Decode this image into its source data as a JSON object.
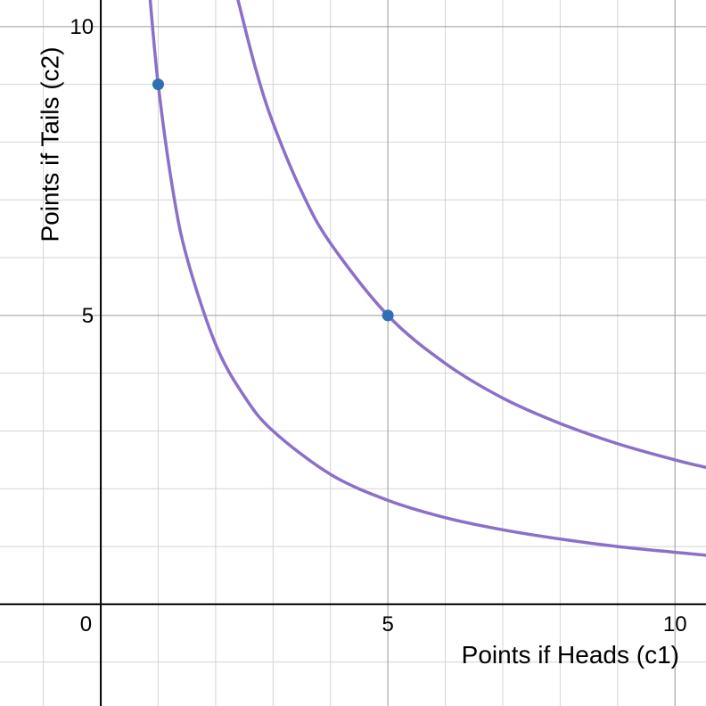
{
  "chart_data": {
    "type": "line",
    "xlabel": "Points if Heads (c1)",
    "ylabel": "Points if Tails (c2)",
    "xlim": [
      -1.755,
      10.54
    ],
    "ylim": [
      -1.76,
      10.46
    ],
    "xticks": [
      0,
      5,
      10
    ],
    "yticks": [
      5,
      10
    ],
    "grid": true,
    "series": [
      {
        "color": "#8b6fc9",
        "x": [
          0.86,
          1,
          1.25,
          1.5,
          2,
          2.5,
          3,
          4,
          5,
          6,
          7,
          8,
          9,
          10,
          10.54
        ],
        "values": [
          10.47,
          9,
          7.2,
          6,
          4.5,
          3.6,
          3,
          2.25,
          1.8,
          1.5,
          1.29,
          1.13,
          1,
          0.9,
          0.85
        ]
      },
      {
        "color": "#8b6fc9",
        "x": [
          2.39,
          2.7,
          3,
          3.5,
          4,
          5,
          6,
          7,
          8,
          9,
          10,
          10.54
        ],
        "values": [
          10.46,
          9.26,
          8.33,
          7.14,
          6.25,
          5,
          4.17,
          3.57,
          3.13,
          2.78,
          2.5,
          2.37
        ]
      }
    ],
    "points": {
      "color": "#2d70b3",
      "x": [
        1,
        5
      ],
      "values": [
        9,
        5
      ]
    }
  }
}
